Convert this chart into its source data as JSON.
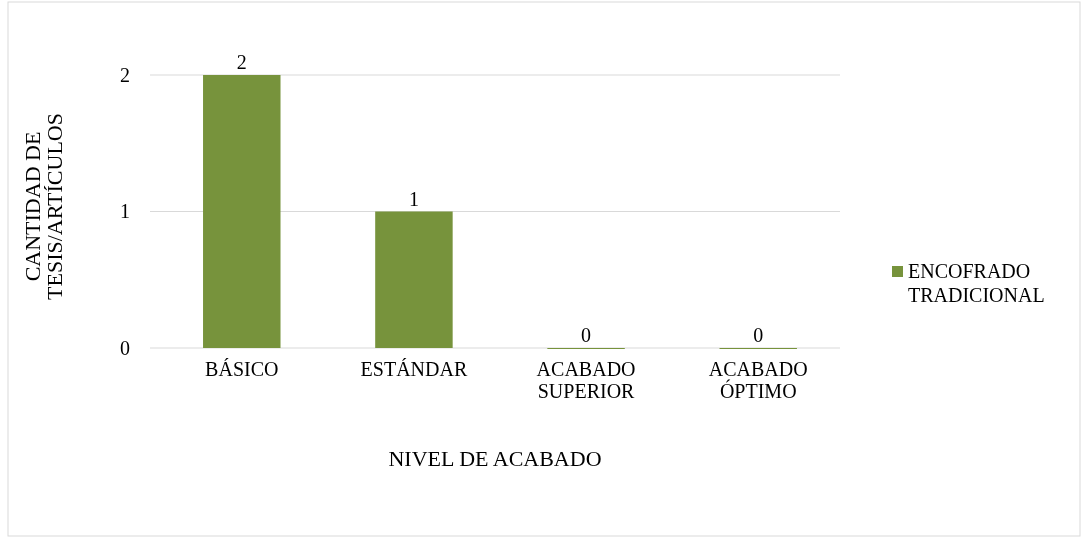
{
  "chart_data": {
    "type": "bar",
    "xlabel": "NIVEL DE ACABADO",
    "ylabel": "CANTIDAD DE TESIS/ARTÍCULOS",
    "categories": [
      "BÁSICO",
      "ESTÁNDAR",
      "ACABADO SUPERIOR",
      "ACABADO ÓPTIMO"
    ],
    "series": [
      {
        "name": "ENCOFRADO TRADICIONAL",
        "color": "#77933c",
        "values": [
          2,
          1,
          0,
          0
        ]
      }
    ],
    "ylim": [
      0,
      2
    ],
    "yticks": [
      0,
      1,
      2
    ],
    "grid": "y",
    "legend": "right",
    "data_labels": true
  }
}
